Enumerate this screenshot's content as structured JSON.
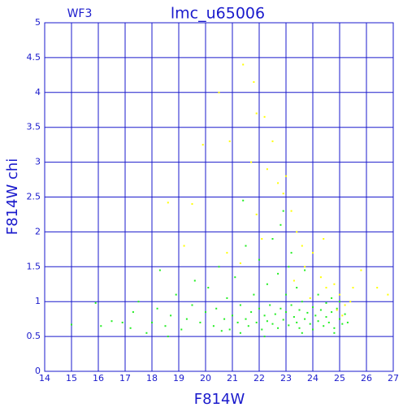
{
  "chart_data": {
    "type": "scatter",
    "title": "lmc_u65006",
    "subtitle": "WF3",
    "x_label": "F814W",
    "y_label": "F814W chi",
    "xlim": [
      14,
      27
    ],
    "ylim": [
      0,
      5
    ],
    "xticks": [
      14,
      15,
      16,
      17,
      18,
      19,
      20,
      21,
      22,
      23,
      24,
      25,
      26,
      27
    ],
    "yticks": [
      0,
      0.5,
      1,
      1.5,
      2,
      2.5,
      3,
      3.5,
      4,
      4.5,
      5
    ],
    "grid": true,
    "grid_color": "#1a1acc",
    "series": [
      {
        "color": "#22ee22",
        "x": [
          15.0,
          15.9,
          16.1,
          16.5,
          16.9,
          17.2,
          17.3,
          17.5,
          17.8,
          18.0,
          18.2,
          18.3,
          18.5,
          18.7,
          18.9,
          19.1,
          19.3,
          19.5,
          19.6,
          19.8,
          20.0,
          20.1,
          20.3,
          20.4,
          20.5,
          20.7,
          20.8,
          20.9,
          21.0,
          21.1,
          21.2,
          21.3,
          21.4,
          21.5,
          21.5,
          21.6,
          21.7,
          21.8,
          21.9,
          22.0,
          22.0,
          22.1,
          22.2,
          22.3,
          22.3,
          22.4,
          22.5,
          22.5,
          22.6,
          22.7,
          22.7,
          22.8,
          22.9,
          22.9,
          23.0,
          23.0,
          23.1,
          23.2,
          23.2,
          23.3,
          23.4,
          23.4,
          23.5,
          23.5,
          23.6,
          23.7,
          23.7,
          23.8,
          23.9,
          24.0,
          24.0,
          24.1,
          24.2,
          24.2,
          24.3,
          24.4,
          24.5,
          24.5,
          24.6,
          24.7,
          24.7,
          24.8,
          24.9,
          25.0,
          25.0,
          25.1,
          25.2,
          25.3,
          22.2,
          23.6,
          21.3,
          24.8,
          22.8,
          23.1,
          20.6,
          18.6
        ],
        "values": [
          0.67,
          0.98,
          0.65,
          0.72,
          0.7,
          0.62,
          0.85,
          1.0,
          0.55,
          0.7,
          0.9,
          1.45,
          0.65,
          0.8,
          1.1,
          0.6,
          0.75,
          0.95,
          1.3,
          0.7,
          0.85,
          1.2,
          0.65,
          0.9,
          1.5,
          0.75,
          1.05,
          0.6,
          0.8,
          1.35,
          0.7,
          0.95,
          2.45,
          0.75,
          1.8,
          0.65,
          0.85,
          1.1,
          0.7,
          0.9,
          1.6,
          0.6,
          0.8,
          1.25,
          0.72,
          0.95,
          0.68,
          1.9,
          0.82,
          0.62,
          1.4,
          0.9,
          0.74,
          2.3,
          0.85,
          1.1,
          0.66,
          0.95,
          1.7,
          0.78,
          0.7,
          1.2,
          0.88,
          0.62,
          1.0,
          0.75,
          1.45,
          0.84,
          0.68,
          0.92,
          0.6,
          0.8,
          1.1,
          0.72,
          0.88,
          0.65,
          0.98,
          0.78,
          0.7,
          1.05,
          0.85,
          0.62,
          0.9,
          0.75,
          1.0,
          0.68,
          0.82,
          0.7,
          0.5,
          0.55,
          0.55,
          0.55,
          2.1,
          1.5,
          0.58,
          0.5
        ]
      },
      {
        "color": "#ffff00",
        "x": [
          18.6,
          19.2,
          19.5,
          20.5,
          20.9,
          21.4,
          21.8,
          21.9,
          22.2,
          21.7,
          22.3,
          22.5,
          22.7,
          22.9,
          23.0,
          23.2,
          23.4,
          23.6,
          22.1,
          21.9,
          23.7,
          24.0,
          24.3,
          24.5,
          24.8,
          25.0,
          25.2,
          25.4,
          25.5,
          25.8,
          26.4,
          26.8,
          24.9,
          25.1,
          23.9,
          23.3,
          21.3,
          20.8,
          19.9,
          24.4
        ],
        "values": [
          2.42,
          1.8,
          2.4,
          4.0,
          3.3,
          4.4,
          4.15,
          3.7,
          3.65,
          3.0,
          2.9,
          3.3,
          2.7,
          2.55,
          2.8,
          2.3,
          2.0,
          1.8,
          1.9,
          2.25,
          1.5,
          1.7,
          1.35,
          1.2,
          1.25,
          1.1,
          0.95,
          1.0,
          1.2,
          1.45,
          1.2,
          1.1,
          0.88,
          0.8,
          1.05,
          1.3,
          1.55,
          1.7,
          3.25,
          1.9
        ]
      }
    ]
  }
}
